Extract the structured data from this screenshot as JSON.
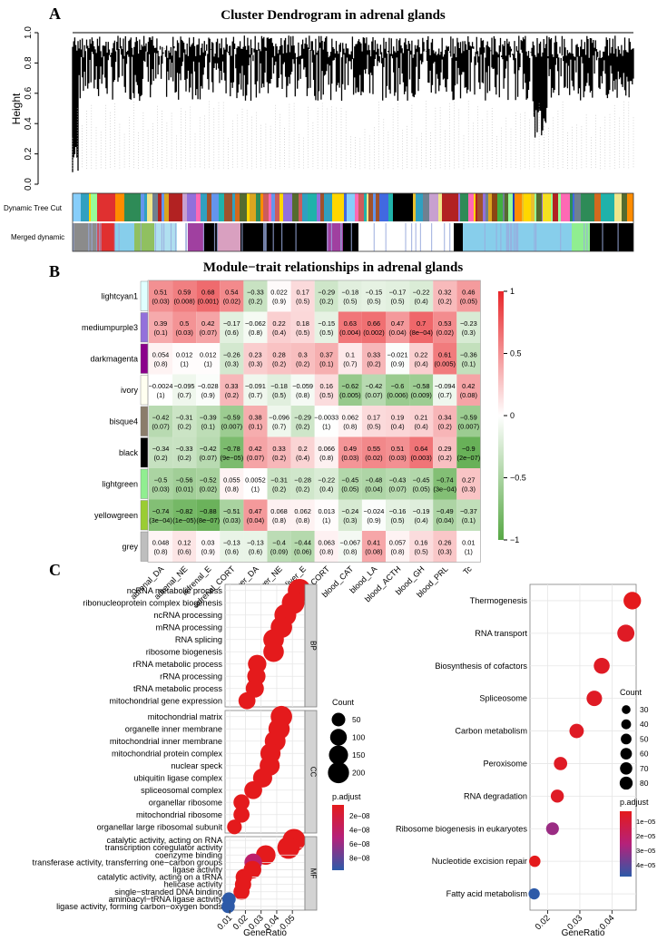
{
  "panels": {
    "a": {
      "letter": "A",
      "title": "Cluster Dendrogram in adrenal glands",
      "ylabel": "Height",
      "yticks": [
        "0.0",
        "0.2",
        "0.4",
        "0.6",
        "0.8",
        "1.0"
      ],
      "row_labels": [
        "Dynamic Tree Cut",
        "Merged dynamic"
      ]
    },
    "b": {
      "letter": "B",
      "title": "Module−trait relationships in adrenal glands"
    },
    "c": {
      "letter": "C"
    }
  },
  "chart_data": [
    {
      "type": "dendrogram",
      "title": "Cluster Dendrogram in adrenal glands",
      "ylabel": "Height",
      "ylim": [
        0,
        1
      ],
      "color_rows": [
        "Dynamic Tree Cut",
        "Merged dynamic"
      ],
      "merged_colors": [
        "#8b8b8b",
        "#e03030",
        "#87ceeb",
        "#90c060",
        "#b0e0f0",
        "#ffffff",
        "#a040a0",
        "#000000",
        "#d9a0c0",
        "#000000",
        "#000000",
        "#a040a0",
        "#000000",
        "#ffffff",
        "#000000",
        "#87ceeb",
        "#90ee90",
        "#000000"
      ]
    },
    {
      "type": "heatmap",
      "title": "Module−trait relationships in adrenal glands",
      "rows": [
        "lightcyan1",
        "mediumpurple3",
        "darkmagenta",
        "ivory",
        "bisque4",
        "black",
        "lightgreen",
        "yellowgreen",
        "grey"
      ],
      "row_colors": [
        "#e0ffff",
        "#9370db",
        "#8b008b",
        "#fffff0",
        "#8b7d6b",
        "#000000",
        "#90ee90",
        "#9acd32",
        "#bebebe"
      ],
      "columns": [
        "adrenal_DA",
        "adrenal_NE",
        "adrenal_E",
        "adrenal_CORT",
        "liver_DA",
        "liver_NE",
        "liver_E",
        "liver_CORT",
        "blood_CAT",
        "blood_LA",
        "blood_ACTH",
        "blood_GH",
        "blood_PRL",
        "Tc"
      ],
      "values": [
        [
          0.51,
          0.59,
          0.68,
          0.54,
          -0.33,
          0.022,
          0.17,
          -0.29,
          -0.18,
          -0.15,
          -0.17,
          -0.22,
          0.32,
          0.46
        ],
        [
          0.39,
          0.5,
          0.42,
          -0.17,
          -0.062,
          0.22,
          0.18,
          -0.15,
          0.63,
          0.66,
          0.47,
          0.7,
          0.53,
          -0.23
        ],
        [
          0.054,
          0.012,
          0.012,
          -0.26,
          0.23,
          0.28,
          0.3,
          0.37,
          0.1,
          0.33,
          -0.021,
          0.22,
          0.61,
          -0.36
        ],
        [
          -0.0024,
          -0.095,
          -0.028,
          0.33,
          -0.091,
          -0.18,
          -0.059,
          0.16,
          -0.62,
          -0.42,
          -0.6,
          -0.58,
          -0.094,
          0.42
        ],
        [
          -0.42,
          -0.31,
          -0.39,
          -0.59,
          0.38,
          -0.096,
          -0.29,
          -0.0033,
          0.062,
          0.17,
          0.19,
          0.21,
          0.34,
          -0.59
        ],
        [
          -0.34,
          -0.33,
          -0.42,
          -0.78,
          0.42,
          0.33,
          0.2,
          0.066,
          0.49,
          0.55,
          0.51,
          0.64,
          0.29,
          -0.9
        ],
        [
          -0.5,
          -0.56,
          -0.52,
          0.055,
          0.0052,
          -0.31,
          -0.28,
          -0.22,
          -0.45,
          -0.48,
          -0.43,
          -0.45,
          -0.74,
          0.27
        ],
        [
          -0.74,
          -0.82,
          -0.88,
          -0.51,
          0.47,
          0.068,
          0.062,
          0.013,
          -0.24,
          -0.024,
          -0.16,
          -0.19,
          -0.49,
          -0.37
        ],
        [
          0.048,
          0.12,
          0.03,
          -0.13,
          -0.13,
          -0.4,
          -0.44,
          0.063,
          -0.067,
          0.41,
          0.057,
          0.16,
          0.26,
          0.01
        ]
      ],
      "value_labels": [
        [
          "0.51",
          "0.59",
          "0.68",
          "0.54",
          "−0.33",
          "0.022",
          "0.17",
          "−0.29",
          "−0.18",
          "−0.15",
          "−0.17",
          "−0.22",
          "0.32",
          "0.46"
        ],
        [
          "0.39",
          "0.5",
          "0.42",
          "−0.17",
          "−0.062",
          "0.22",
          "0.18",
          "−0.15",
          "0.63",
          "0.66",
          "0.47",
          "0.7",
          "0.53",
          "−0.23"
        ],
        [
          "0.054",
          "0.012",
          "0.012",
          "−0.26",
          "0.23",
          "0.28",
          "0.3",
          "0.37",
          "0.1",
          "0.33",
          "−0.021",
          "0.22",
          "0.61",
          "−0.36"
        ],
        [
          "−0.0024",
          "−0.095",
          "−0.028",
          "0.33",
          "−0.091",
          "−0.18",
          "−0.059",
          "0.16",
          "−0.62",
          "−0.42",
          "−0.6",
          "−0.58",
          "−0.094",
          "0.42"
        ],
        [
          "−0.42",
          "−0.31",
          "−0.39",
          "−0.59",
          "0.38",
          "−0.096",
          "−0.29",
          "−0.0033",
          "0.062",
          "0.17",
          "0.19",
          "0.21",
          "0.34",
          "−0.59"
        ],
        [
          "−0.34",
          "−0.33",
          "−0.42",
          "−0.78",
          "0.42",
          "0.33",
          "0.2",
          "0.066",
          "0.49",
          "0.55",
          "0.51",
          "0.64",
          "0.29",
          "−0.9"
        ],
        [
          "−0.5",
          "−0.56",
          "−0.52",
          "0.055",
          "0.0052",
          "−0.31",
          "−0.28",
          "−0.22",
          "−0.45",
          "−0.48",
          "−0.43",
          "−0.45",
          "−0.74",
          "0.27"
        ],
        [
          "−0.74",
          "−0.82",
          "−0.88",
          "−0.51",
          "0.47",
          "0.068",
          "0.062",
          "0.013",
          "−0.24",
          "−0.024",
          "−0.16",
          "−0.19",
          "−0.49",
          "−0.37"
        ],
        [
          "0.048",
          "0.12",
          "0.03",
          "−0.13",
          "−0.13",
          "−0.4",
          "−0.44",
          "0.063",
          "−0.067",
          "0.41",
          "0.057",
          "0.16",
          "0.26",
          "0.01"
        ]
      ],
      "pvalues": [
        [
          "(0.03)",
          "(0.008)",
          "(0.001)",
          "(0.02)",
          "(0.2)",
          "(0.9)",
          "(0.5)",
          "(0.2)",
          "(0.5)",
          "(0.5)",
          "(0.5)",
          "(0.4)",
          "(0.2)",
          "(0.05)"
        ],
        [
          "(0.1)",
          "(0.03)",
          "(0.07)",
          "(0.6)",
          "(0.8)",
          "(0.4)",
          "(0.5)",
          "(0.5)",
          "(0.004)",
          "(0.002)",
          "(0.04)",
          "(8e−04)",
          "(0.02)",
          "(0.3)"
        ],
        [
          "(0.8)",
          "(1)",
          "(1)",
          "(0.3)",
          "(0.3)",
          "(0.2)",
          "(0.2)",
          "(0.1)",
          "(0.7)",
          "(0.2)",
          "(0.9)",
          "(0.4)",
          "(0.005)",
          "(0.1)"
        ],
        [
          "(1)",
          "(0.7)",
          "(0.9)",
          "(0.2)",
          "(0.7)",
          "(0.5)",
          "(0.8)",
          "(0.5)",
          "(0.005)",
          "(0.07)",
          "(0.006)",
          "(0.009)",
          "(0.7)",
          "(0.08)"
        ],
        [
          "(0.07)",
          "(0.2)",
          "(0.1)",
          "(0.007)",
          "(0.1)",
          "(0.7)",
          "(0.2)",
          "(1)",
          "(0.8)",
          "(0.5)",
          "(0.4)",
          "(0.4)",
          "(0.2)",
          "(0.007)"
        ],
        [
          "(0.2)",
          "(0.2)",
          "(0.07)",
          "(9e−05)",
          "(0.07)",
          "(0.2)",
          "(0.4)",
          "(0.8)",
          "(0.03)",
          "(0.02)",
          "(0.03)",
          "(0.003)",
          "(0.2)",
          "(2e−07)"
        ],
        [
          "(0.03)",
          "(0.01)",
          "(0.02)",
          "(0.8)",
          "(1)",
          "(0.2)",
          "(0.2)",
          "(0.4)",
          "(0.05)",
          "(0.04)",
          "(0.07)",
          "(0.05)",
          "(3e−04)",
          "(0.3)"
        ],
        [
          "(3e−04)",
          "(1e−05)",
          "(8e−07)",
          "(0.03)",
          "(0.04)",
          "(0.8)",
          "(0.8)",
          "(1)",
          "(0.3)",
          "(0.9)",
          "(0.5)",
          "(0.4)",
          "(0.04)",
          "(0.1)"
        ],
        [
          "(0.8)",
          "(0.6)",
          "(0.9)",
          "(0.6)",
          "(0.6)",
          "(0.09)",
          "(0.06)",
          "(0.8)",
          "(0.8)",
          "(0.08)",
          "(0.8)",
          "(0.5)",
          "(0.3)",
          "(1)"
        ]
      ],
      "colorbar_ticks": [
        "1",
        "0.5",
        "0",
        "−0.5",
        "−1"
      ],
      "colorscale": {
        "low": "#57a845",
        "mid": "#ffffff",
        "high": "#e8262a"
      }
    },
    {
      "type": "scatter",
      "subtype": "dotplot",
      "xlabel": "GeneRatio",
      "xticks": [
        "0.01",
        "0.02",
        "0.03",
        "0.04",
        "0.05"
      ],
      "xlim": [
        0.007,
        0.058
      ],
      "groups": [
        {
          "name": "BP",
          "terms": [
            {
              "term": "ncRNA metabolic process",
              "ratio": 0.0545,
              "count": 225
            },
            {
              "term": "ribonucleoprotein complex biogenesis",
              "ratio": 0.0505,
              "count": 210
            },
            {
              "term": "ncRNA processing",
              "ratio": 0.0455,
              "count": 190
            },
            {
              "term": "mRNA processing",
              "ratio": 0.043,
              "count": 180
            },
            {
              "term": "RNA splicing",
              "ratio": 0.038,
              "count": 160
            },
            {
              "term": "ribosome biogenesis",
              "ratio": 0.038,
              "count": 158
            },
            {
              "term": "rRNA metabolic process",
              "ratio": 0.0275,
              "count": 115
            },
            {
              "term": "rRNA processing",
              "ratio": 0.027,
              "count": 112
            },
            {
              "term": "tRNA metabolic process",
              "ratio": 0.026,
              "count": 110
            },
            {
              "term": "mitochondrial gene expression",
              "ratio": 0.021,
              "count": 90
            }
          ]
        },
        {
          "name": "CC",
          "terms": [
            {
              "term": "mitochondrial matrix",
              "ratio": 0.043,
              "count": 180
            },
            {
              "term": "organelle inner membrane",
              "ratio": 0.0415,
              "count": 175
            },
            {
              "term": "mitochondrial inner membrane",
              "ratio": 0.039,
              "count": 165
            },
            {
              "term": "mitochondrial protein complex",
              "ratio": 0.036,
              "count": 150
            },
            {
              "term": "nuclear speck",
              "ratio": 0.0355,
              "count": 148
            },
            {
              "term": "ubiquitin ligase complex",
              "ratio": 0.031,
              "count": 130
            },
            {
              "term": "spliceosomal complex",
              "ratio": 0.025,
              "count": 105
            },
            {
              "term": "organellar ribosome",
              "ratio": 0.0175,
              "count": 75
            },
            {
              "term": "mitochondrial ribosome",
              "ratio": 0.0175,
              "count": 75
            },
            {
              "term": "organellar large ribosomal subunit",
              "ratio": 0.013,
              "count": 55
            }
          ]
        },
        {
          "name": "MF",
          "terms": [
            {
              "term": "catalytic activity, acting on RNA",
              "ratio": 0.051,
              "count": 215
            },
            {
              "term": "transcription coregulator activity",
              "ratio": 0.0475,
              "count": 200
            },
            {
              "term": "coenzyme binding",
              "ratio": 0.033,
              "count": 138
            },
            {
              "term": "transferase activity, transferring one−carbon groups",
              "ratio": 0.025,
              "count": 100
            },
            {
              "term": "ligase activity",
              "ratio": 0.0245,
              "count": 102
            },
            {
              "term": "catalytic activity, acting on a tRNA",
              "ratio": 0.019,
              "count": 80
            },
            {
              "term": "helicase activity",
              "ratio": 0.0185,
              "count": 78
            },
            {
              "term": "single−stranded DNA binding",
              "ratio": 0.0175,
              "count": 75
            },
            {
              "term": "aminoacyl−tRNA ligase activity",
              "ratio": 0.0095,
              "count": 40
            },
            {
              "term": "ligase activity, forming carbon−oxygen bonds",
              "ratio": 0.009,
              "count": 38
            }
          ]
        }
      ],
      "size_legend": {
        "title": "Count",
        "values": [
          50,
          100,
          150,
          200
        ]
      },
      "color_legend": {
        "title": "p.adjust",
        "ticks": [
          "2e−08",
          "4e−08",
          "6e−08",
          "8e−08"
        ]
      }
    },
    {
      "type": "scatter",
      "subtype": "dotplot",
      "xlabel": "GeneRatio",
      "xticks": [
        "0.02",
        "0.03",
        "0.04"
      ],
      "xlim": [
        0.0145,
        0.0475
      ],
      "terms": [
        {
          "term": "Thermogenesis",
          "ratio": 0.0463,
          "count": 82
        },
        {
          "term": "RNA transport",
          "ratio": 0.0443,
          "count": 78
        },
        {
          "term": "Biosynthesis of cofactors",
          "ratio": 0.0368,
          "count": 65
        },
        {
          "term": "Spliceosome",
          "ratio": 0.0345,
          "count": 61
        },
        {
          "term": "Carbon metabolism",
          "ratio": 0.029,
          "count": 51
        },
        {
          "term": "Peroxisome",
          "ratio": 0.024,
          "count": 42
        },
        {
          "term": "RNA degradation",
          "ratio": 0.023,
          "count": 40
        },
        {
          "term": "Ribosome biogenesis in eukaryotes",
          "ratio": 0.0215,
          "count": 38
        },
        {
          "term": "Nucleotide excision repair",
          "ratio": 0.016,
          "count": 28
        },
        {
          "term": "Fatty acid metabolism",
          "ratio": 0.0158,
          "count": 27
        }
      ],
      "padj_rank": [
        0.0,
        0.05,
        0.05,
        0.05,
        0.05,
        0.05,
        0.05,
        0.6,
        0.0,
        1.0
      ],
      "size_legend": {
        "title": "Count",
        "values": [
          30,
          40,
          50,
          60,
          70,
          80
        ]
      },
      "color_legend": {
        "title": "p.adjust",
        "ticks": [
          "1e−05",
          "2e−05",
          "3e−05",
          "4e−05"
        ]
      }
    }
  ],
  "colors": {
    "red": "#e41a1c",
    "purple": "#9b2c8e",
    "blue": "#2d5aa8",
    "grid": "#e8e8e8",
    "strip": "#d3d3d3"
  }
}
